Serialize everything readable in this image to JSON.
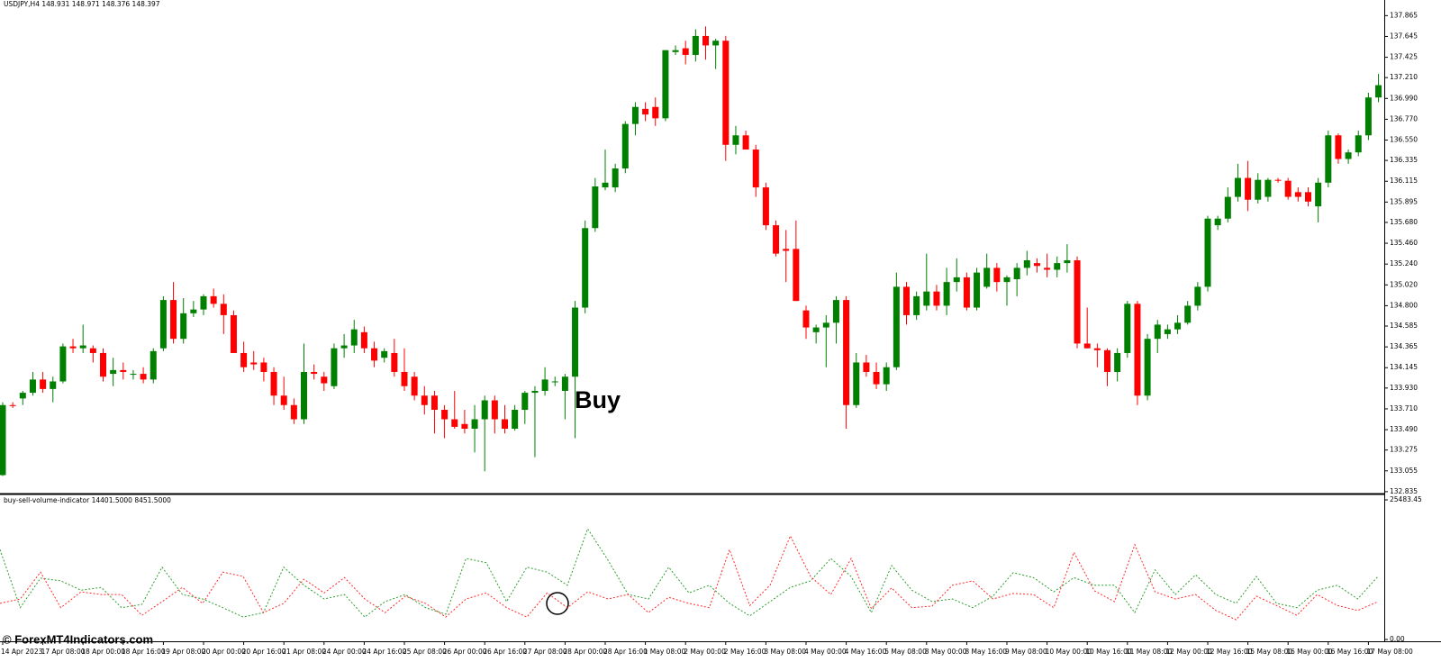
{
  "chart_data": [
    {
      "type": "candlestick",
      "title": "USDJPY,H4  148.931 148.971 148.376 148.397",
      "annotation": "Buy",
      "up_color": "#007f00",
      "down_color": "#ff0000",
      "categories": [
        "14 Apr 2023",
        null,
        null,
        null,
        "17 Apr 08:00",
        null,
        null,
        null,
        "18 Apr 00:00",
        null,
        null,
        null,
        "18 Apr 16:00",
        null,
        null,
        null,
        "19 Apr 08:00",
        null,
        null,
        null,
        "20 Apr 00:00",
        null,
        null,
        null,
        "20 Apr 16:00",
        null,
        null,
        null,
        "21 Apr 08:00",
        null,
        null,
        null,
        "24 Apr 00:00",
        null,
        null,
        null,
        "24 Apr 16:00",
        null,
        null,
        null,
        "25 Apr 08:00",
        null,
        null,
        null,
        "26 Apr 00:00",
        null,
        null,
        null,
        "26 Apr 16:00",
        null,
        null,
        null,
        "27 Apr 08:00",
        null,
        null,
        null,
        "28 Apr 00:00",
        null,
        null,
        null,
        "28 Apr 16:00",
        null,
        null,
        null,
        "1 May 08:00",
        null,
        null,
        null,
        "2 May 00:00",
        null,
        null,
        null,
        "2 May 16:00",
        null,
        null,
        null,
        "3 May 08:00",
        null,
        null,
        null,
        "4 May 00:00",
        null,
        null,
        null,
        "4 May 16:00",
        null,
        null,
        null,
        "5 May 08:00",
        null,
        null,
        null,
        "8 May 00:00",
        null,
        null,
        null,
        "8 May 16:00",
        null,
        null,
        null,
        "9 May 08:00",
        null,
        null,
        null,
        "10 May 00:00",
        null,
        null,
        null,
        "10 May 16:00",
        null,
        null,
        null,
        "11 May 08:00",
        null,
        null,
        null,
        "12 May 00:00",
        null,
        null,
        null,
        "12 May 16:00",
        null,
        null,
        null,
        "15 May 08:00",
        null,
        null,
        null,
        "16 May 00:00",
        null,
        null,
        null,
        "16 May 16:00",
        null,
        null,
        null,
        "17 May 08:00",
        null
      ],
      "open": [
        133.01,
        133.75,
        133.82,
        133.88,
        134.02,
        133.92,
        134.0,
        134.37,
        134.35,
        134.35,
        134.3,
        134.08,
        134.12,
        134.08,
        134.08,
        134.02,
        134.35,
        134.86,
        134.45,
        134.72,
        134.76,
        134.9,
        134.82,
        134.7,
        134.3,
        134.2,
        134.2,
        134.1,
        133.85,
        133.75,
        133.6,
        134.1,
        134.05,
        133.95,
        134.35,
        134.38,
        134.52,
        134.35,
        134.25,
        134.3,
        134.1,
        134.05,
        133.85,
        133.85,
        133.7,
        133.6,
        133.55,
        133.5,
        133.6,
        133.8,
        133.6,
        133.5,
        133.7,
        133.88,
        133.9,
        134.0,
        133.9,
        134.05,
        134.78,
        135.62,
        136.05,
        136.05,
        136.25,
        136.72,
        136.88,
        136.9,
        136.78,
        137.48,
        137.52,
        137.45,
        137.65,
        137.55,
        137.6,
        136.5,
        136.6,
        136.45,
        136.05,
        135.65,
        135.4,
        135.4,
        134.75,
        134.52,
        134.57,
        134.62,
        134.86,
        133.75,
        134.2,
        134.1,
        133.97,
        134.15,
        135.0,
        134.7,
        134.8,
        134.95,
        134.8,
        135.05,
        135.1,
        134.78,
        135.0,
        135.2,
        135.05,
        135.08,
        135.2,
        135.25,
        135.2,
        135.18,
        135.25,
        135.28,
        134.4,
        134.35,
        134.33,
        134.1,
        134.3,
        134.82,
        133.85,
        134.45,
        134.5,
        134.55,
        134.62,
        134.8,
        135.0,
        135.65,
        135.72,
        135.95,
        136.15,
        135.92,
        135.95,
        136.13,
        136.12,
        136.0,
        136.0,
        135.85,
        136.1,
        136.6,
        136.35,
        136.42,
        136.6,
        137.0
      ],
      "high": [
        133.78,
        133.78,
        133.9,
        134.1,
        134.1,
        134.05,
        134.4,
        134.45,
        134.6,
        134.38,
        134.35,
        134.25,
        134.2,
        134.12,
        134.15,
        134.35,
        134.9,
        135.05,
        134.88,
        134.85,
        134.92,
        134.98,
        134.92,
        134.75,
        134.42,
        134.32,
        134.25,
        134.15,
        134.05,
        133.82,
        134.4,
        134.18,
        134.1,
        134.4,
        134.5,
        134.65,
        134.58,
        134.42,
        134.35,
        134.45,
        134.35,
        134.1,
        133.95,
        133.9,
        133.75,
        133.9,
        133.7,
        133.75,
        133.85,
        133.85,
        133.75,
        133.75,
        133.9,
        133.95,
        134.15,
        134.05,
        134.08,
        134.85,
        135.7,
        136.15,
        136.45,
        136.3,
        136.75,
        136.95,
        136.95,
        137.0,
        137.5,
        137.55,
        137.6,
        137.72,
        137.75,
        137.62,
        137.65,
        136.7,
        136.65,
        136.5,
        136.1,
        135.7,
        135.6,
        135.7,
        134.8,
        134.6,
        134.7,
        134.9,
        134.9,
        134.3,
        134.28,
        134.2,
        134.2,
        135.15,
        135.05,
        134.95,
        135.35,
        135.02,
        135.2,
        135.3,
        135.15,
        135.2,
        135.35,
        135.25,
        135.12,
        135.25,
        135.38,
        135.3,
        135.35,
        135.32,
        135.45,
        135.32,
        134.78,
        134.4,
        134.35,
        134.35,
        134.85,
        134.85,
        134.5,
        134.65,
        134.6,
        134.7,
        134.85,
        135.05,
        135.75,
        135.75,
        136.05,
        136.3,
        136.33,
        136.2,
        136.15,
        136.15,
        136.15,
        136.05,
        136.05,
        136.15,
        136.65,
        136.62,
        136.45,
        136.65,
        137.05,
        137.25
      ],
      "low": [
        133.0,
        133.72,
        133.75,
        133.85,
        133.88,
        133.78,
        133.98,
        134.3,
        134.3,
        134.2,
        134.0,
        133.95,
        134.02,
        134.02,
        133.98,
        133.98,
        134.32,
        134.4,
        134.4,
        134.68,
        134.7,
        134.78,
        134.5,
        134.3,
        134.1,
        134.12,
        134.0,
        133.75,
        133.7,
        133.55,
        133.55,
        134.02,
        133.9,
        133.92,
        134.25,
        134.3,
        134.3,
        134.15,
        134.2,
        134.05,
        133.9,
        133.8,
        133.65,
        133.45,
        133.4,
        133.5,
        133.45,
        133.25,
        133.05,
        133.45,
        133.45,
        133.48,
        133.55,
        133.2,
        133.85,
        133.95,
        133.6,
        133.4,
        134.72,
        135.58,
        136.02,
        136.0,
        136.2,
        136.6,
        136.75,
        136.7,
        136.75,
        137.45,
        137.35,
        137.38,
        137.4,
        137.3,
        136.33,
        136.4,
        136.45,
        135.95,
        135.6,
        135.32,
        135.05,
        134.85,
        134.45,
        134.4,
        134.15,
        134.4,
        133.5,
        133.72,
        134.05,
        133.92,
        133.9,
        134.12,
        134.6,
        134.65,
        134.75,
        134.75,
        134.7,
        134.95,
        134.75,
        134.75,
        134.98,
        134.95,
        134.8,
        134.9,
        135.12,
        135.15,
        135.1,
        135.1,
        135.15,
        134.35,
        134.35,
        134.15,
        133.95,
        134.0,
        134.25,
        133.75,
        133.8,
        134.3,
        134.45,
        134.5,
        134.6,
        134.75,
        134.95,
        135.6,
        135.68,
        135.9,
        135.8,
        135.88,
        135.9,
        136.1,
        135.92,
        135.9,
        135.85,
        135.68,
        136.05,
        136.3,
        136.3,
        136.38,
        136.55,
        136.95
      ],
      "close": [
        133.75,
        133.74,
        133.88,
        134.02,
        133.92,
        134.0,
        134.37,
        134.35,
        134.38,
        134.3,
        134.05,
        134.12,
        134.1,
        134.08,
        134.02,
        134.32,
        134.86,
        134.45,
        134.72,
        134.76,
        134.9,
        134.82,
        134.7,
        134.3,
        134.15,
        134.18,
        134.1,
        133.85,
        133.75,
        133.6,
        134.1,
        134.08,
        133.98,
        134.35,
        134.38,
        134.55,
        134.35,
        134.22,
        134.32,
        134.1,
        133.95,
        133.85,
        133.75,
        133.7,
        133.6,
        133.52,
        133.5,
        133.6,
        133.8,
        133.6,
        133.5,
        133.7,
        133.88,
        133.9,
        134.02,
        134.0,
        134.05,
        134.78,
        135.62,
        136.06,
        136.1,
        136.25,
        136.72,
        136.9,
        136.82,
        136.78,
        137.5,
        137.5,
        137.45,
        137.65,
        137.55,
        137.6,
        136.5,
        136.6,
        136.45,
        136.05,
        135.65,
        135.35,
        135.38,
        134.85,
        134.57,
        134.57,
        134.62,
        134.86,
        133.75,
        134.2,
        134.1,
        133.97,
        134.15,
        135.0,
        134.7,
        134.9,
        134.95,
        134.8,
        135.05,
        135.1,
        134.78,
        135.15,
        135.2,
        135.05,
        135.1,
        135.2,
        135.28,
        135.22,
        135.18,
        135.25,
        135.28,
        134.4,
        134.35,
        134.33,
        134.1,
        134.3,
        134.82,
        133.85,
        134.45,
        134.6,
        134.55,
        134.62,
        134.8,
        135.0,
        135.72,
        135.72,
        135.95,
        136.15,
        135.92,
        136.13,
        136.13,
        136.12,
        135.95,
        135.95,
        135.9,
        136.1,
        136.6,
        136.35,
        136.42,
        136.6,
        137.0,
        137.13
      ],
      "ylim": [
        132.815,
        138.03
      ],
      "yticks": [
        137.865,
        137.645,
        137.425,
        {
          "value": 137.21,
          "label": "137.210"
        },
        {
          "value": 136.99,
          "label": "136.990"
        },
        {
          "value": 136.77,
          "label": "136.770"
        },
        {
          "value": 136.55,
          "label": "136.550"
        },
        136.335,
        136.115,
        135.895,
        {
          "value": 135.68,
          "label": "135.680"
        },
        {
          "value": 135.46,
          "label": "135.460"
        },
        {
          "value": 135.24,
          "label": "135.240"
        },
        {
          "value": 135.02,
          "label": "135.020"
        },
        {
          "value": 134.8,
          "label": "134.800"
        },
        134.585,
        134.365,
        134.145,
        {
          "value": 133.93,
          "label": "133.930"
        },
        {
          "value": 133.71,
          "label": "133.710"
        },
        {
          "value": 133.49,
          "label": "133.490"
        },
        133.275,
        133.055,
        132.835
      ]
    },
    {
      "type": "line",
      "title": "buy-sell-volume-indicator 14401.5000 8451.5000",
      "series": [
        {
          "color": "#2e9e2e",
          "values": [
            16400,
            5800,
            11200,
            10700,
            9000,
            9500,
            5800,
            6400,
            13200,
            8200,
            7400,
            5800,
            4100,
            4900,
            13200,
            9900,
            7400,
            8200,
            4100,
            6900,
            8200,
            5800,
            4600,
            14800,
            14000,
            6900,
            13200,
            12300,
            9900,
            20200,
            14500,
            8200,
            7400,
            13200,
            8500,
            9900,
            6600,
            4300,
            6900,
            9500,
            10700,
            14800,
            11500,
            4900,
            13500,
            9000,
            6900,
            7400,
            5800,
            7900,
            12200,
            11300,
            8700,
            11300,
            9900,
            9900,
            4900,
            12700,
            8200,
            11800,
            8200,
            6600,
            11500,
            6600,
            5800,
            9000,
            9900,
            7400,
            11500
          ]
        },
        {
          "color": "#ff2a2a",
          "values": [
            6600,
            7400,
            12300,
            5800,
            8700,
            8200,
            8200,
            4400,
            6900,
            9500,
            6600,
            12300,
            11500,
            4900,
            6600,
            11000,
            8500,
            11300,
            7400,
            4900,
            7900,
            6600,
            4100,
            7400,
            8500,
            5800,
            4100,
            8500,
            5800,
            8700,
            7400,
            8200,
            4900,
            7700,
            6600,
            5800,
            16400,
            6200,
            9900,
            18900,
            11500,
            8200,
            14800,
            5600,
            9400,
            5800,
            6100,
            9900,
            10700,
            7400,
            8400,
            8200,
            5800,
            15900,
            8900,
            6900,
            17300,
            8700,
            7400,
            8200,
            5300,
            3600,
            7900,
            6200,
            4400,
            8200,
            6200,
            5300,
            6900
          ]
        }
      ],
      "ylim": [
        -330,
        26305
      ],
      "yticks": [
        25483.45,
        {
          "value": 0,
          "label": "0.00"
        }
      ]
    }
  ],
  "watermark": "© ForexMT4Indicators.com"
}
